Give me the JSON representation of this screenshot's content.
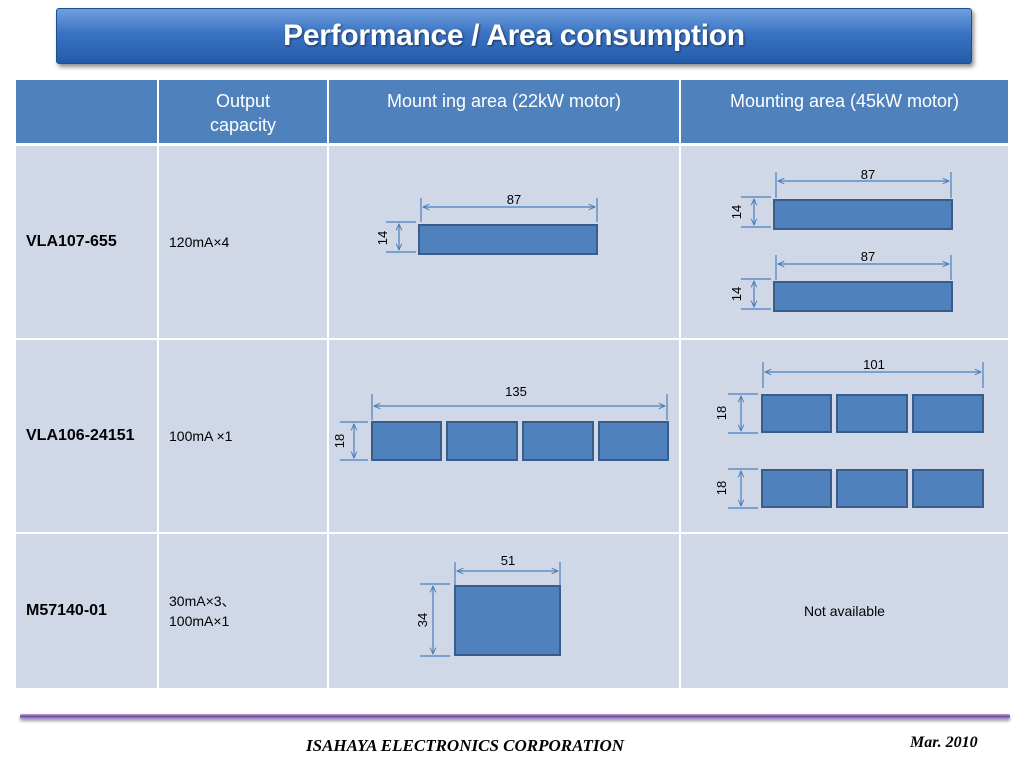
{
  "title": "Performance / Area consumption",
  "table": {
    "headers": [
      "",
      "Output capacity",
      "Mount ing area (22kW motor)",
      "Mounting area (45kW motor)"
    ],
    "rows": [
      {
        "part": "VLA107-655",
        "output": [
          "120mA×4"
        ],
        "area22": {
          "width_label": "87",
          "height_label": "14",
          "modules": 1
        },
        "area45": {
          "width_label_1": "87",
          "height_label_1": "14",
          "width_label_2": "87",
          "height_label_2": "14"
        }
      },
      {
        "part": "VLA106-24151",
        "output": [
          "100mA ×1"
        ],
        "area22": {
          "width_label": "135",
          "height_label": "18",
          "modules": 4
        },
        "area45": {
          "width_label": "101",
          "height_label_1": "18",
          "height_label_2": "18"
        }
      },
      {
        "part": "M57140-01",
        "output": [
          "30mA×3、",
          "100mA×1"
        ],
        "area22": {
          "width_label": "51",
          "height_label": "34",
          "modules": 1
        },
        "area45": {
          "text": "Not available"
        }
      }
    ]
  },
  "footer": {
    "company": "ISAHAYA  ELECTRONICS CORPORATION",
    "date": "Mar. 2010"
  },
  "colors": {
    "header_bg": "#4f81bd",
    "cell_bg": "#d0d8e8",
    "module_fill": "#4f81bd",
    "module_stroke": "#385d8a",
    "dimension_line": "#4a7ebb"
  }
}
